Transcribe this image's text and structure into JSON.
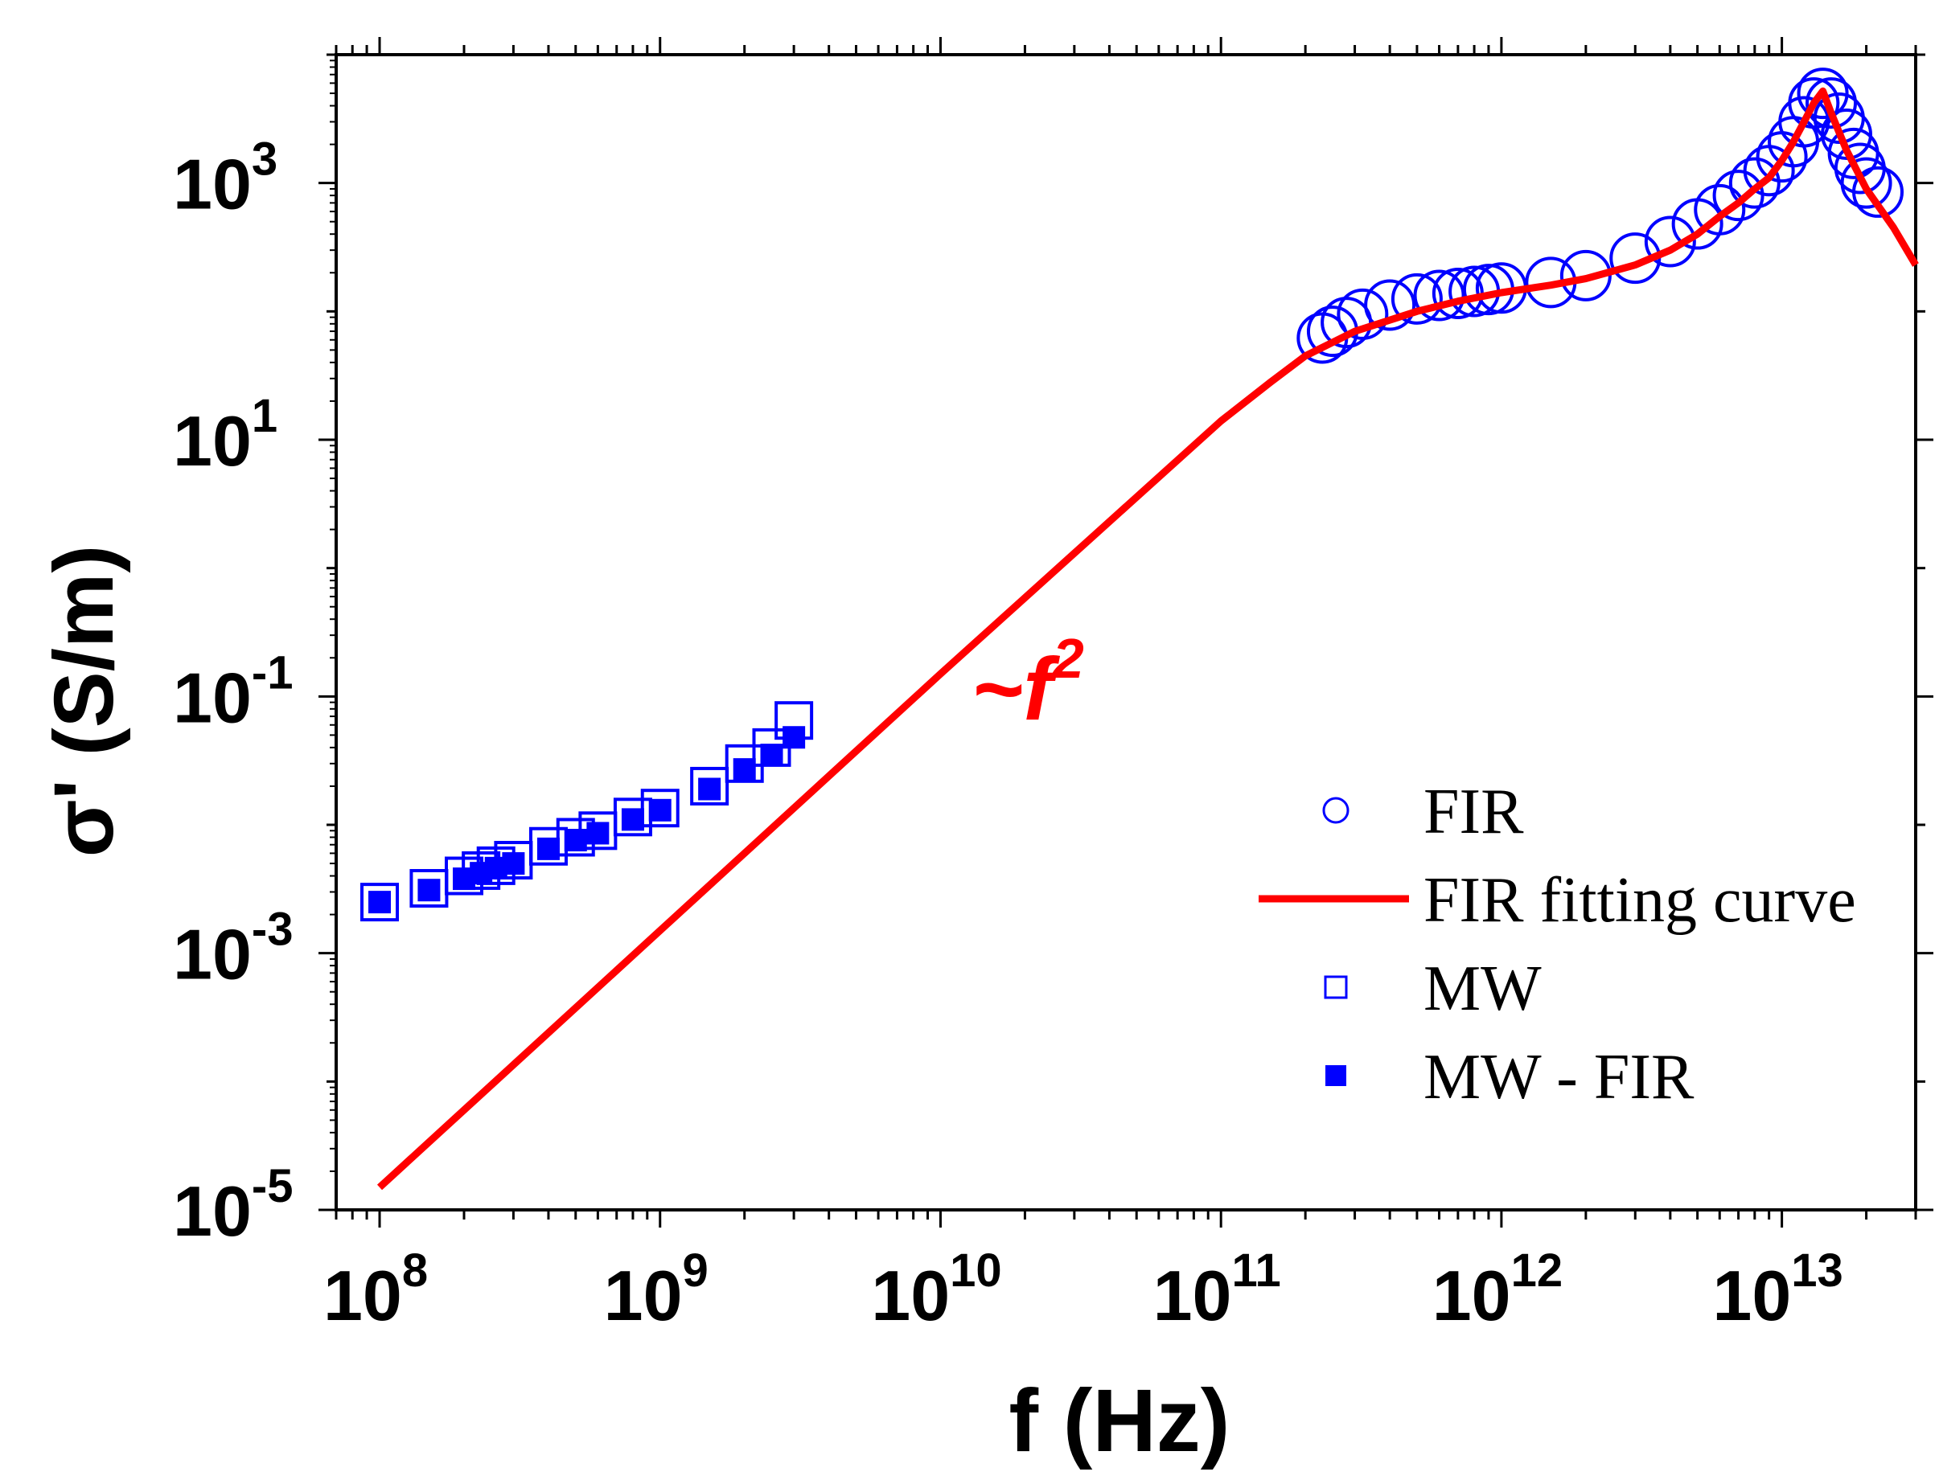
{
  "chart_data": {
    "type": "scatter",
    "x_scale": "log",
    "y_scale": "log",
    "xlabel": "f (Hz)",
    "ylabel": "σ' (S/m)",
    "xlim": [
      70000000.0,
      30000000000000.0
    ],
    "ylim": [
      1e-05,
      10000.0
    ],
    "x_ticks": [
      {
        "base": "10",
        "exp": "8"
      },
      {
        "base": "10",
        "exp": "9"
      },
      {
        "base": "10",
        "exp": "10"
      },
      {
        "base": "10",
        "exp": "11"
      },
      {
        "base": "10",
        "exp": "12"
      },
      {
        "base": "10",
        "exp": "13"
      }
    ],
    "y_ticks": [
      {
        "base": "10",
        "exp": "-5"
      },
      {
        "base": "10",
        "exp": "-3"
      },
      {
        "base": "10",
        "exp": "-1"
      },
      {
        "base": "10",
        "exp": "1"
      },
      {
        "base": "10",
        "exp": "3"
      }
    ],
    "annotation": {
      "text": "~f",
      "sup": "2",
      "color": "#ff0000"
    },
    "legend": {
      "position": "bottom-right"
    },
    "series": [
      {
        "name": "FIR",
        "marker": "open-circle",
        "color": "#0000ff",
        "points": [
          [
            230000000000.0,
            62
          ],
          [
            250000000000.0,
            70
          ],
          [
            280000000000.0,
            82
          ],
          [
            320000000000.0,
            95
          ],
          [
            400000000000.0,
            112
          ],
          [
            500000000000.0,
            125
          ],
          [
            600000000000.0,
            133
          ],
          [
            700000000000.0,
            138
          ],
          [
            800000000000.0,
            143
          ],
          [
            900000000000.0,
            148
          ],
          [
            1000000000000.0,
            152
          ],
          [
            1500000000000.0,
            168
          ],
          [
            2000000000000.0,
            190
          ],
          [
            3000000000000.0,
            260
          ],
          [
            4000000000000.0,
            350
          ],
          [
            5000000000000.0,
            480
          ],
          [
            6000000000000.0,
            620
          ],
          [
            7000000000000.0,
            800
          ],
          [
            8000000000000.0,
            1000
          ],
          [
            9000000000000.0,
            1250
          ],
          [
            10000000000000.0,
            1600
          ],
          [
            11000000000000.0,
            2100
          ],
          [
            12000000000000.0,
            3000
          ],
          [
            13000000000000.0,
            4200
          ],
          [
            14000000000000.0,
            5000
          ],
          [
            15000000000000.0,
            4200
          ],
          [
            16000000000000.0,
            3200
          ],
          [
            17000000000000.0,
            2400
          ],
          [
            18000000000000.0,
            1700
          ],
          [
            19000000000000.0,
            1300
          ],
          [
            20000000000000.0,
            1000
          ],
          [
            22000000000000.0,
            850
          ]
        ]
      },
      {
        "name": "FIR fitting curve",
        "marker": "line",
        "color": "#ff0000",
        "points": [
          [
            100000000.0,
            1.5e-05
          ],
          [
            1000000000.0,
            0.0015
          ],
          [
            10000000000.0,
            0.15
          ],
          [
            100000000000.0,
            14
          ],
          [
            150000000000.0,
            28
          ],
          [
            200000000000.0,
            45
          ],
          [
            300000000000.0,
            70
          ],
          [
            500000000000.0,
            100
          ],
          [
            700000000000.0,
            120
          ],
          [
            1000000000000.0,
            140
          ],
          [
            1500000000000.0,
            160
          ],
          [
            2000000000000.0,
            180
          ],
          [
            3000000000000.0,
            230
          ],
          [
            4000000000000.0,
            300
          ],
          [
            5000000000000.0,
            400
          ],
          [
            6000000000000.0,
            550
          ],
          [
            7000000000000.0,
            700
          ],
          [
            8000000000000.0,
            900
          ],
          [
            9000000000000.0,
            1100
          ],
          [
            10000000000000.0,
            1500
          ],
          [
            11000000000000.0,
            2100
          ],
          [
            12000000000000.0,
            3000
          ],
          [
            13000000000000.0,
            4200
          ],
          [
            14000000000000.0,
            5200
          ],
          [
            15000000000000.0,
            3500
          ],
          [
            17000000000000.0,
            1800
          ],
          [
            20000000000000.0,
            900
          ],
          [
            25000000000000.0,
            450
          ],
          [
            30000000000000.0,
            230
          ]
        ]
      },
      {
        "name": "MW",
        "marker": "open-square",
        "color": "#0000ff",
        "points": [
          [
            100000000.0,
            0.0025
          ],
          [
            150000000.0,
            0.0032
          ],
          [
            200000000.0,
            0.004
          ],
          [
            230000000.0,
            0.0044
          ],
          [
            260000000.0,
            0.0048
          ],
          [
            300000000.0,
            0.0053
          ],
          [
            400000000.0,
            0.0068
          ],
          [
            500000000.0,
            0.008
          ],
          [
            600000000.0,
            0.009
          ],
          [
            800000000.0,
            0.0115
          ],
          [
            1000000000.0,
            0.0135
          ],
          [
            1500000000.0,
            0.02
          ],
          [
            2000000000.0,
            0.03
          ],
          [
            2500000000.0,
            0.04
          ],
          [
            3000000000.0,
            0.065
          ]
        ]
      },
      {
        "name": "MW - FIR",
        "marker": "filled-square",
        "color": "#0000ff",
        "points": [
          [
            100000000.0,
            0.0025
          ],
          [
            150000000.0,
            0.0031
          ],
          [
            200000000.0,
            0.0038
          ],
          [
            230000000.0,
            0.0042
          ],
          [
            260000000.0,
            0.0046
          ],
          [
            300000000.0,
            0.005
          ],
          [
            400000000.0,
            0.0065
          ],
          [
            500000000.0,
            0.0076
          ],
          [
            600000000.0,
            0.0086
          ],
          [
            800000000.0,
            0.011
          ],
          [
            1000000000.0,
            0.013
          ],
          [
            1500000000.0,
            0.019
          ],
          [
            2000000000.0,
            0.027
          ],
          [
            2500000000.0,
            0.035
          ],
          [
            3000000000.0,
            0.048
          ]
        ]
      }
    ]
  }
}
